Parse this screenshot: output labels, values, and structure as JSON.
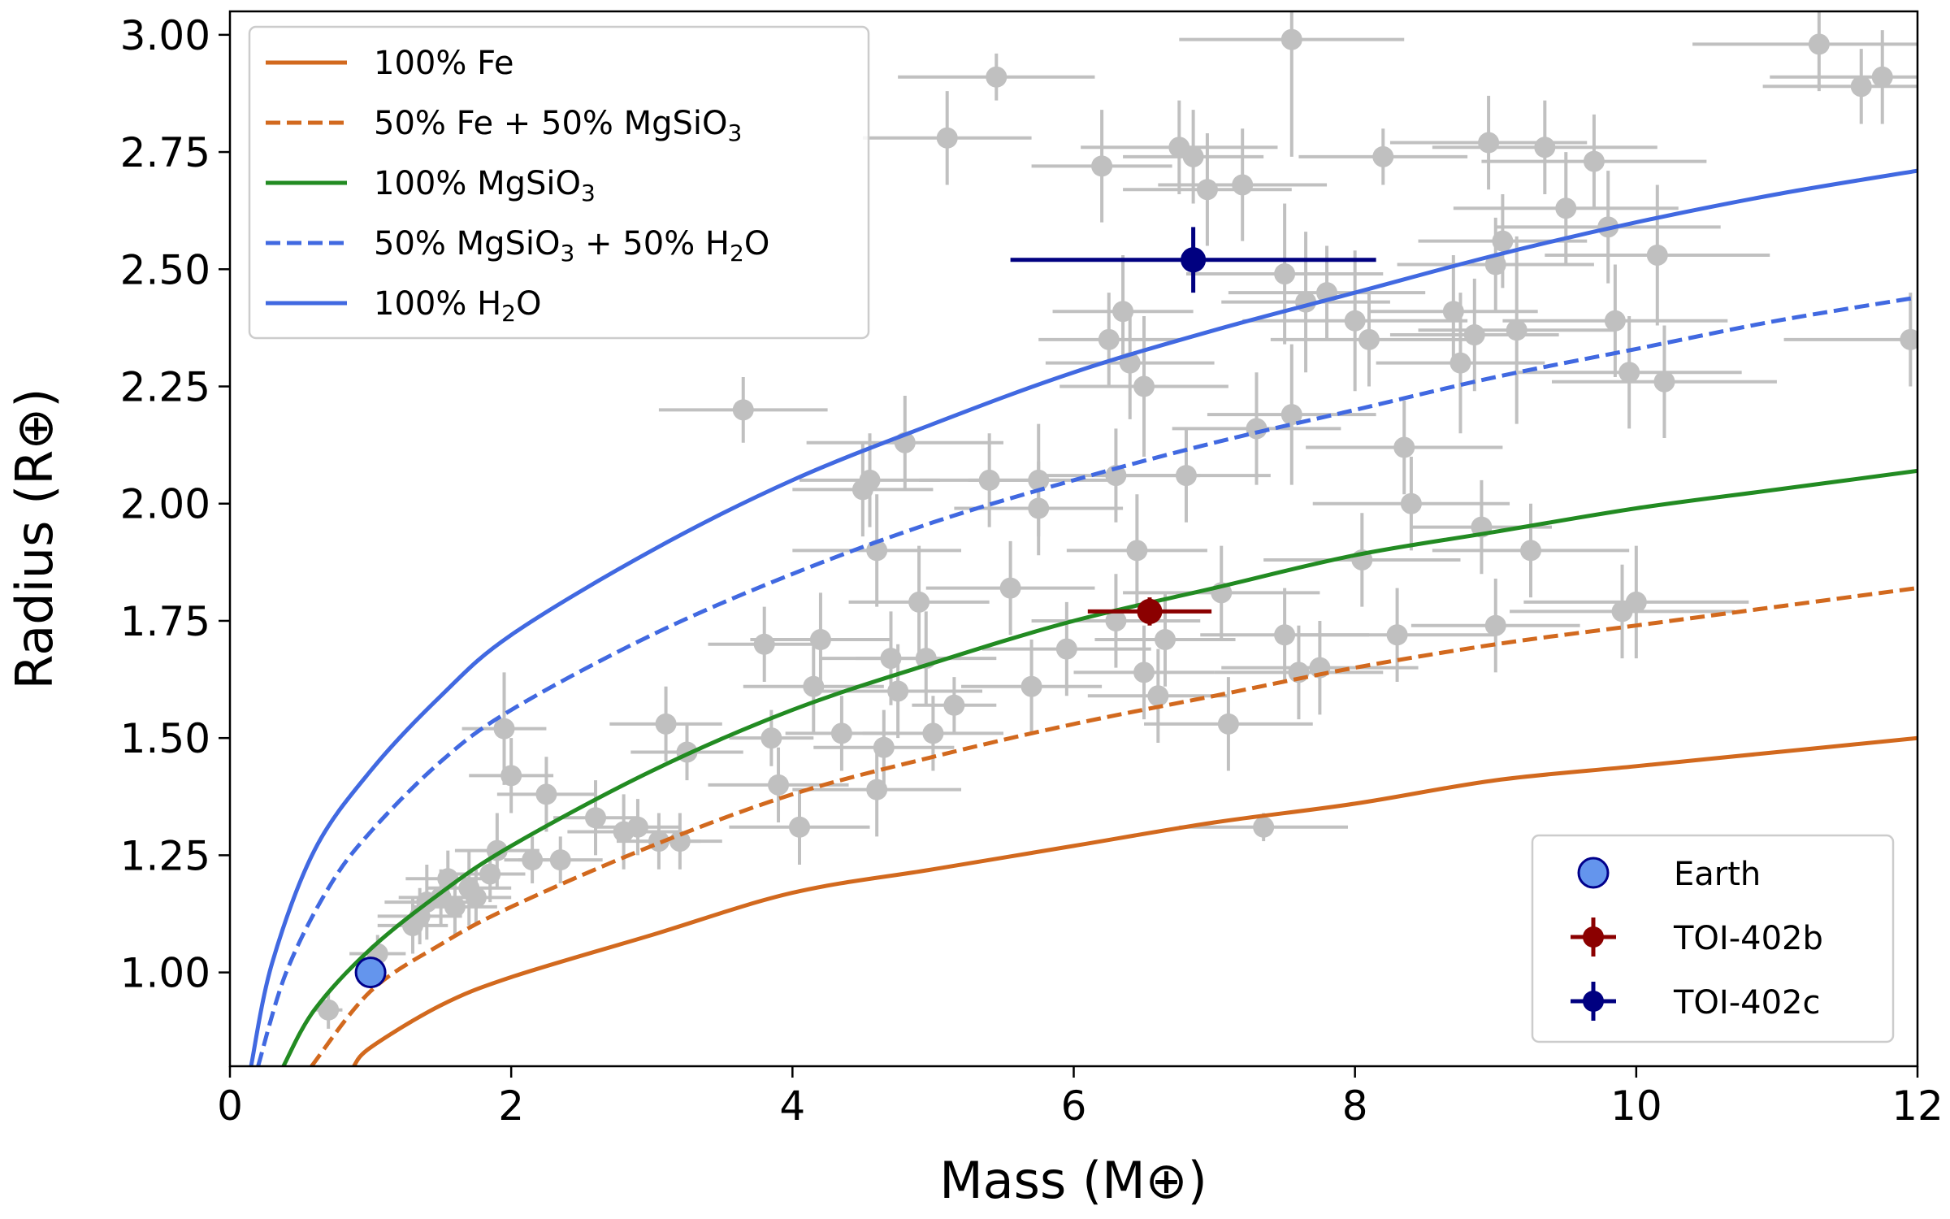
{
  "chart_data": {
    "type": "scatter",
    "title": "",
    "xlabel": "Mass (M⊕)",
    "ylabel": "Radius (R⊕)",
    "xlim": [
      0,
      12
    ],
    "ylim": [
      0.8,
      3.05
    ],
    "x_ticks": [
      0,
      2,
      4,
      6,
      8,
      10,
      12
    ],
    "y_ticks": [
      1.0,
      1.25,
      1.5,
      1.75,
      2.0,
      2.25,
      2.5,
      2.75,
      3.0
    ],
    "grid": false,
    "model_curves": [
      {
        "name": "100% Fe",
        "color": "#d2691e",
        "dash": "solid",
        "points": [
          [
            0.88,
            0.8
          ],
          [
            1,
            0.84
          ],
          [
            1.5,
            0.93
          ],
          [
            2,
            0.99
          ],
          [
            3,
            1.08
          ],
          [
            4,
            1.17
          ],
          [
            5,
            1.22
          ],
          [
            6,
            1.27
          ],
          [
            7,
            1.32
          ],
          [
            8,
            1.36
          ],
          [
            9,
            1.41
          ],
          [
            10,
            1.44
          ],
          [
            11,
            1.47
          ],
          [
            12,
            1.5
          ]
        ]
      },
      {
        "name": "50% Fe + 50% MgSiO3",
        "color": "#d2691e",
        "dash": "dashed",
        "points": [
          [
            0.58,
            0.8
          ],
          [
            1,
            0.96
          ],
          [
            1.5,
            1.06
          ],
          [
            2,
            1.14
          ],
          [
            3,
            1.27
          ],
          [
            4,
            1.38
          ],
          [
            5,
            1.46
          ],
          [
            6,
            1.53
          ],
          [
            7,
            1.59
          ],
          [
            8,
            1.65
          ],
          [
            9,
            1.7
          ],
          [
            10,
            1.74
          ],
          [
            11,
            1.78
          ],
          [
            12,
            1.82
          ]
        ]
      },
      {
        "name": "100% MgSiO3",
        "color": "#228b22",
        "dash": "solid",
        "points": [
          [
            0.38,
            0.8
          ],
          [
            0.6,
            0.92
          ],
          [
            1,
            1.05
          ],
          [
            1.5,
            1.17
          ],
          [
            2,
            1.27
          ],
          [
            3,
            1.43
          ],
          [
            4,
            1.56
          ],
          [
            5,
            1.66
          ],
          [
            6,
            1.75
          ],
          [
            7,
            1.82
          ],
          [
            8,
            1.89
          ],
          [
            9,
            1.94
          ],
          [
            10,
            1.99
          ],
          [
            11,
            2.03
          ],
          [
            12,
            2.07
          ]
        ]
      },
      {
        "name": "50% MgSiO3 + 50% H2O",
        "color": "#4169e1",
        "dash": "dashed",
        "points": [
          [
            0.2,
            0.8
          ],
          [
            0.4,
            1.0
          ],
          [
            0.7,
            1.18
          ],
          [
            1,
            1.3
          ],
          [
            1.5,
            1.45
          ],
          [
            2,
            1.56
          ],
          [
            3,
            1.72
          ],
          [
            4,
            1.85
          ],
          [
            5,
            1.96
          ],
          [
            6,
            2.05
          ],
          [
            7,
            2.13
          ],
          [
            8,
            2.2
          ],
          [
            9,
            2.27
          ],
          [
            10,
            2.33
          ],
          [
            11,
            2.39
          ],
          [
            12,
            2.44
          ]
        ]
      },
      {
        "name": "100% H2O",
        "color": "#4169e1",
        "dash": "solid",
        "points": [
          [
            0.15,
            0.8
          ],
          [
            0.3,
            1.02
          ],
          [
            0.6,
            1.26
          ],
          [
            1,
            1.43
          ],
          [
            1.5,
            1.59
          ],
          [
            2,
            1.72
          ],
          [
            3,
            1.9
          ],
          [
            4,
            2.05
          ],
          [
            5,
            2.17
          ],
          [
            6,
            2.28
          ],
          [
            7,
            2.37
          ],
          [
            8,
            2.45
          ],
          [
            9,
            2.53
          ],
          [
            10,
            2.6
          ],
          [
            11,
            2.66
          ],
          [
            12,
            2.71
          ]
        ]
      }
    ],
    "background_planets": [
      [
        0.7,
        0.92,
        0.1,
        0.04
      ],
      [
        1.05,
        1.04,
        0.2,
        0.04
      ],
      [
        1.3,
        1.1,
        0.25,
        0.06
      ],
      [
        1.35,
        1.12,
        0.3,
        0.06
      ],
      [
        1.4,
        1.15,
        0.3,
        0.08
      ],
      [
        1.5,
        1.16,
        0.3,
        0.06
      ],
      [
        1.55,
        1.2,
        0.3,
        0.06
      ],
      [
        1.6,
        1.14,
        0.3,
        0.06
      ],
      [
        1.7,
        1.18,
        0.3,
        0.08
      ],
      [
        1.75,
        1.16,
        0.25,
        0.06
      ],
      [
        1.85,
        1.21,
        0.25,
        0.06
      ],
      [
        1.9,
        1.26,
        0.3,
        0.08
      ],
      [
        1.95,
        1.52,
        0.3,
        0.12
      ],
      [
        2.0,
        1.42,
        0.3,
        0.08
      ],
      [
        2.15,
        1.24,
        0.2,
        0.05
      ],
      [
        2.25,
        1.38,
        0.35,
        0.08
      ],
      [
        2.35,
        1.24,
        0.3,
        0.05
      ],
      [
        2.6,
        1.33,
        0.3,
        0.08
      ],
      [
        2.8,
        1.3,
        0.4,
        0.08
      ],
      [
        2.9,
        1.31,
        0.3,
        0.06
      ],
      [
        3.05,
        1.28,
        0.3,
        0.06
      ],
      [
        3.1,
        1.53,
        0.4,
        0.08
      ],
      [
        3.2,
        1.28,
        0.3,
        0.06
      ],
      [
        3.25,
        1.47,
        0.4,
        0.06
      ],
      [
        3.65,
        2.2,
        0.6,
        0.07
      ],
      [
        3.8,
        1.7,
        0.4,
        0.08
      ],
      [
        3.85,
        1.5,
        0.3,
        0.06
      ],
      [
        3.9,
        1.4,
        0.5,
        0.08
      ],
      [
        4.05,
        1.31,
        0.5,
        0.08
      ],
      [
        4.15,
        1.61,
        0.5,
        0.1
      ],
      [
        4.2,
        1.71,
        0.5,
        0.1
      ],
      [
        4.35,
        1.51,
        0.4,
        0.08
      ],
      [
        4.5,
        2.03,
        0.5,
        0.1
      ],
      [
        4.55,
        2.05,
        0.5,
        0.1
      ],
      [
        4.6,
        1.39,
        0.6,
        0.1
      ],
      [
        4.6,
        1.9,
        0.6,
        0.12
      ],
      [
        4.65,
        1.48,
        0.5,
        0.08
      ],
      [
        4.7,
        1.67,
        0.5,
        0.1
      ],
      [
        4.75,
        1.6,
        0.6,
        0.1
      ],
      [
        4.8,
        2.13,
        0.7,
        0.1
      ],
      [
        4.9,
        1.79,
        0.5,
        0.12
      ],
      [
        4.95,
        1.67,
        0.5,
        0.1
      ],
      [
        5.0,
        1.51,
        0.5,
        0.08
      ],
      [
        5.15,
        1.57,
        0.3,
        0.06
      ],
      [
        5.1,
        2.78,
        0.6,
        0.1
      ],
      [
        5.45,
        2.91,
        0.7,
        0.05
      ],
      [
        5.4,
        2.05,
        0.5,
        0.1
      ],
      [
        5.55,
        1.82,
        0.6,
        0.1
      ],
      [
        5.7,
        1.61,
        0.5,
        0.1
      ],
      [
        5.75,
        2.05,
        0.5,
        0.12
      ],
      [
        5.75,
        1.99,
        0.6,
        0.1
      ],
      [
        5.95,
        1.69,
        0.6,
        0.1
      ],
      [
        6.2,
        2.72,
        0.5,
        0.12
      ],
      [
        6.3,
        2.06,
        0.6,
        0.1
      ],
      [
        6.3,
        1.75,
        0.6,
        0.1
      ],
      [
        6.35,
        2.41,
        0.5,
        0.12
      ],
      [
        6.25,
        2.35,
        0.5,
        0.1
      ],
      [
        6.4,
        2.3,
        0.6,
        0.12
      ],
      [
        6.45,
        1.9,
        0.5,
        0.12
      ],
      [
        6.5,
        1.64,
        0.5,
        0.1
      ],
      [
        6.5,
        2.25,
        0.6,
        0.15
      ],
      [
        6.6,
        1.59,
        0.5,
        0.1
      ],
      [
        6.65,
        1.71,
        0.5,
        0.1
      ],
      [
        6.75,
        2.76,
        0.7,
        0.1
      ],
      [
        6.8,
        2.06,
        0.6,
        0.1
      ],
      [
        6.85,
        2.74,
        0.5,
        0.1
      ],
      [
        6.95,
        2.67,
        0.6,
        0.12
      ],
      [
        7.05,
        1.81,
        0.7,
        0.1
      ],
      [
        7.1,
        1.53,
        0.6,
        0.1
      ],
      [
        7.2,
        2.68,
        0.6,
        0.12
      ],
      [
        7.3,
        2.16,
        0.6,
        0.12
      ],
      [
        7.35,
        1.31,
        0.6,
        0.03
      ],
      [
        7.5,
        2.49,
        0.7,
        0.15
      ],
      [
        7.5,
        1.72,
        0.6,
        0.1
      ],
      [
        7.55,
        2.19,
        0.6,
        0.15
      ],
      [
        7.55,
        2.99,
        0.8,
        0.25
      ],
      [
        7.6,
        1.64,
        0.6,
        0.1
      ],
      [
        7.65,
        2.43,
        0.6,
        0.15
      ],
      [
        7.75,
        1.65,
        0.7,
        0.1
      ],
      [
        7.8,
        2.45,
        0.7,
        0.1
      ],
      [
        8.0,
        2.39,
        0.8,
        0.15
      ],
      [
        8.05,
        1.88,
        0.7,
        0.1
      ],
      [
        8.1,
        2.35,
        0.7,
        0.1
      ],
      [
        8.2,
        2.74,
        0.6,
        0.06
      ],
      [
        8.3,
        1.72,
        0.7,
        0.1
      ],
      [
        8.35,
        2.12,
        0.7,
        0.1
      ],
      [
        8.4,
        2.0,
        0.7,
        0.1
      ],
      [
        8.7,
        2.41,
        0.6,
        0.12
      ],
      [
        8.75,
        2.3,
        0.6,
        0.15
      ],
      [
        8.85,
        2.36,
        0.6,
        0.12
      ],
      [
        8.9,
        1.95,
        0.5,
        0.1
      ],
      [
        8.95,
        2.77,
        0.7,
        0.1
      ],
      [
        9.0,
        2.51,
        0.7,
        0.1
      ],
      [
        9.0,
        1.74,
        0.6,
        0.1
      ],
      [
        9.05,
        2.56,
        0.6,
        0.1
      ],
      [
        9.15,
        2.37,
        0.7,
        0.2
      ],
      [
        9.25,
        1.9,
        0.7,
        0.1
      ],
      [
        9.35,
        2.76,
        0.8,
        0.1
      ],
      [
        9.5,
        2.63,
        0.8,
        0.12
      ],
      [
        9.7,
        2.73,
        0.8,
        0.1
      ],
      [
        9.8,
        2.59,
        0.8,
        0.12
      ],
      [
        9.85,
        2.39,
        0.8,
        0.12
      ],
      [
        9.9,
        1.77,
        0.8,
        0.1
      ],
      [
        9.95,
        2.28,
        0.8,
        0.12
      ],
      [
        10.0,
        1.79,
        0.8,
        0.12
      ],
      [
        10.15,
        2.53,
        0.8,
        0.15
      ],
      [
        10.2,
        2.26,
        0.8,
        0.12
      ],
      [
        11.3,
        2.98,
        0.9,
        0.1
      ],
      [
        11.6,
        2.89,
        0.7,
        0.08
      ],
      [
        11.75,
        2.91,
        0.8,
        0.1
      ],
      [
        11.95,
        2.35,
        0.9,
        0.1
      ]
    ],
    "highlighted_points": [
      {
        "name": "Earth",
        "x": 1.0,
        "y": 1.0,
        "xerr": 0,
        "yerr": 0,
        "color": "#6495ed",
        "edge": "#00008b"
      },
      {
        "name": "TOI-402b",
        "x": 6.54,
        "y": 1.77,
        "xerr": 0.44,
        "yerr": 0.03,
        "color": "#8b0000",
        "edge": "#8b0000"
      },
      {
        "name": "TOI-402c",
        "x": 6.85,
        "y": 2.52,
        "xerr": 1.3,
        "yerr": 0.07,
        "color": "#000080",
        "edge": "#000080"
      }
    ],
    "legend_models": {
      "placement": "top-left",
      "entries": [
        {
          "label": "100% Fe",
          "color": "#d2691e",
          "dash": "solid",
          "parts": [
            [
              "100% Fe",
              ""
            ]
          ]
        },
        {
          "label": "50% Fe + 50% MgSiO3",
          "color": "#d2691e",
          "dash": "dashed",
          "parts": [
            [
              "50% Fe + 50% MgSiO",
              ""
            ],
            [
              "3",
              "sub"
            ]
          ]
        },
        {
          "label": "100% MgSiO3",
          "color": "#228b22",
          "dash": "solid",
          "parts": [
            [
              "100% MgSiO",
              ""
            ],
            [
              "3",
              "sub"
            ]
          ]
        },
        {
          "label": "50% MgSiO3 + 50% H2O",
          "color": "#4169e1",
          "dash": "dashed",
          "parts": [
            [
              "50% MgSiO",
              ""
            ],
            [
              "3",
              "sub"
            ],
            [
              " + 50% H",
              ""
            ],
            [
              "2",
              "sub"
            ],
            [
              "O",
              ""
            ]
          ]
        },
        {
          "label": "100% H2O",
          "color": "#4169e1",
          "dash": "solid",
          "parts": [
            [
              "100% H",
              ""
            ],
            [
              "2",
              "sub"
            ],
            [
              "O",
              ""
            ]
          ]
        }
      ]
    },
    "legend_points": {
      "placement": "bottom-right",
      "entries": [
        {
          "label": "Earth",
          "marker": "circle",
          "color": "#6495ed",
          "edge": "#00008b"
        },
        {
          "label": "TOI-402b",
          "marker": "errorbar",
          "color": "#8b0000"
        },
        {
          "label": "TOI-402c",
          "marker": "errorbar",
          "color": "#000080"
        }
      ]
    }
  }
}
